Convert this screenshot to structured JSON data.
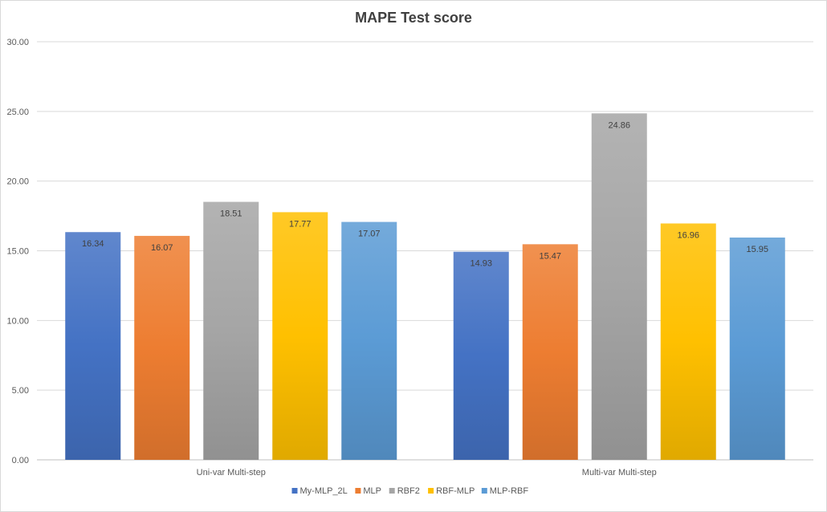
{
  "chart_data": {
    "type": "bar",
    "title": "MAPE Test score",
    "xlabel": "",
    "ylabel": "",
    "categories": [
      "Uni-var Multi-step",
      "Multi-var Multi-step"
    ],
    "series": [
      {
        "name": "My-MLP_2L",
        "values": [
          16.34,
          14.93
        ],
        "color": "#4472c4"
      },
      {
        "name": "MLP",
        "values": [
          16.07,
          15.47
        ],
        "color": "#ed7d31"
      },
      {
        "name": "RBF2",
        "values": [
          18.51,
          24.86
        ],
        "color": "#a5a5a5"
      },
      {
        "name": "RBF-MLP",
        "values": [
          17.77,
          16.96
        ],
        "color": "#ffc000"
      },
      {
        "name": "MLP-RBF",
        "values": [
          17.07,
          15.95
        ],
        "color": "#5b9bd5"
      }
    ],
    "ylim": [
      0,
      30
    ],
    "y_ticks": [
      "0.00",
      "5.00",
      "10.00",
      "15.00",
      "20.00",
      "25.00",
      "30.00"
    ],
    "grid": true,
    "legend_position": "bottom"
  }
}
